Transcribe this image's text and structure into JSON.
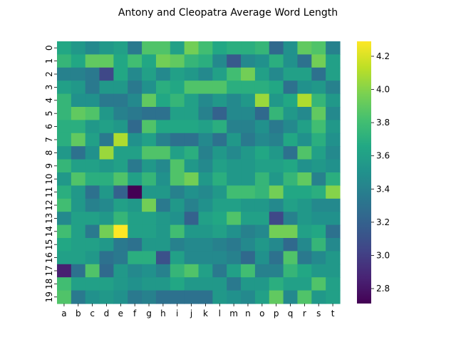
{
  "chart_data": {
    "type": "heatmap",
    "title": "Antony and Cleopatra Average Word Length",
    "xlabel": "",
    "ylabel": "",
    "x_categories": [
      "a",
      "b",
      "c",
      "d",
      "e",
      "f",
      "g",
      "h",
      "i",
      "j",
      "k",
      "l",
      "m",
      "n",
      "o",
      "p",
      "q",
      "r",
      "s",
      "t"
    ],
    "y_categories": [
      "0",
      "1",
      "2",
      "3",
      "4",
      "5",
      "6",
      "7",
      "8",
      "9",
      "10",
      "11",
      "12",
      "13",
      "14",
      "15",
      "16",
      "17",
      "18",
      "19"
    ],
    "colormap": "viridis",
    "vmin": 2.71,
    "vmax": 4.29,
    "colorbar_ticks": [
      "2.8",
      "3.0",
      "3.2",
      "3.4",
      "3.6",
      "3.8",
      "4.0",
      "4.2"
    ],
    "colorbar_tick_values": [
      2.8,
      3.0,
      3.2,
      3.4,
      3.6,
      3.8,
      4.0,
      4.2
    ],
    "values": [
      [
        3.65,
        3.55,
        3.45,
        3.55,
        3.6,
        3.35,
        3.85,
        3.85,
        3.6,
        3.95,
        3.8,
        3.65,
        3.7,
        3.7,
        3.75,
        3.25,
        3.5,
        3.9,
        3.85,
        3.4
      ],
      [
        3.75,
        3.65,
        3.9,
        3.9,
        3.65,
        3.8,
        3.65,
        3.95,
        3.9,
        3.75,
        3.7,
        3.45,
        3.15,
        3.45,
        3.5,
        3.7,
        3.5,
        3.3,
        3.95,
        3.6
      ],
      [
        3.4,
        3.4,
        3.35,
        3.05,
        3.65,
        3.45,
        3.6,
        3.45,
        3.6,
        3.55,
        3.45,
        3.6,
        3.8,
        3.95,
        3.6,
        3.45,
        3.6,
        3.6,
        3.3,
        3.6
      ],
      [
        3.6,
        3.55,
        3.35,
        3.55,
        3.55,
        3.35,
        3.5,
        3.7,
        3.65,
        3.85,
        3.85,
        3.85,
        3.7,
        3.7,
        3.7,
        3.65,
        3.3,
        3.5,
        3.55,
        3.4
      ],
      [
        3.75,
        3.5,
        3.5,
        3.35,
        3.35,
        3.45,
        3.9,
        3.65,
        3.75,
        3.6,
        3.45,
        3.55,
        3.45,
        3.55,
        4.05,
        3.55,
        3.65,
        4.1,
        3.75,
        3.55
      ],
      [
        3.75,
        3.9,
        3.85,
        3.55,
        3.4,
        3.35,
        3.3,
        3.3,
        3.6,
        3.6,
        3.4,
        3.2,
        3.45,
        3.45,
        3.25,
        3.75,
        3.55,
        3.45,
        3.9,
        3.45
      ],
      [
        3.7,
        3.7,
        3.55,
        3.6,
        3.55,
        3.25,
        3.85,
        3.65,
        3.65,
        3.65,
        3.6,
        3.7,
        3.4,
        3.4,
        3.5,
        3.35,
        3.45,
        3.6,
        3.8,
        3.55
      ],
      [
        3.7,
        3.9,
        3.6,
        3.35,
        4.1,
        3.5,
        3.6,
        3.4,
        3.3,
        3.3,
        3.45,
        3.3,
        3.55,
        3.35,
        3.45,
        3.4,
        3.65,
        3.5,
        3.7,
        3.5
      ],
      [
        3.55,
        3.3,
        3.5,
        4.05,
        3.6,
        3.6,
        3.85,
        3.85,
        3.6,
        3.7,
        3.4,
        3.55,
        3.45,
        3.55,
        3.65,
        3.55,
        3.3,
        3.85,
        3.6,
        3.45
      ],
      [
        3.75,
        3.6,
        3.6,
        3.55,
        3.6,
        3.35,
        3.55,
        3.45,
        3.85,
        3.55,
        3.45,
        3.6,
        3.55,
        3.55,
        3.6,
        3.6,
        3.65,
        3.5,
        3.55,
        3.5
      ],
      [
        3.55,
        3.85,
        3.7,
        3.7,
        3.85,
        3.6,
        3.75,
        3.5,
        3.85,
        3.95,
        3.55,
        3.7,
        3.55,
        3.55,
        3.75,
        3.55,
        3.75,
        3.9,
        3.4,
        3.7
      ],
      [
        3.7,
        3.55,
        3.3,
        3.55,
        3.2,
        2.71,
        3.55,
        3.55,
        3.4,
        3.5,
        3.45,
        3.55,
        3.8,
        3.8,
        3.75,
        3.95,
        3.65,
        3.65,
        3.7,
        4.0
      ],
      [
        3.8,
        3.55,
        3.4,
        3.45,
        3.6,
        3.55,
        3.95,
        3.35,
        3.55,
        3.4,
        3.5,
        3.6,
        3.6,
        3.55,
        3.55,
        3.45,
        3.6,
        3.55,
        3.45,
        3.45
      ],
      [
        3.45,
        3.6,
        3.6,
        3.55,
        3.75,
        3.6,
        3.6,
        3.55,
        3.5,
        3.2,
        3.6,
        3.65,
        3.85,
        3.6,
        3.6,
        3.05,
        3.4,
        3.55,
        3.5,
        3.5
      ],
      [
        3.8,
        3.6,
        3.35,
        3.95,
        4.29,
        3.6,
        3.6,
        3.55,
        3.8,
        3.55,
        3.55,
        3.6,
        3.5,
        3.4,
        3.45,
        3.95,
        3.95,
        3.6,
        3.65,
        3.3
      ],
      [
        3.65,
        3.6,
        3.6,
        3.55,
        3.35,
        3.3,
        3.55,
        3.55,
        3.4,
        3.45,
        3.45,
        3.4,
        3.35,
        3.45,
        3.55,
        3.45,
        3.25,
        3.45,
        3.75,
        3.45
      ],
      [
        3.6,
        3.6,
        3.55,
        3.3,
        3.35,
        3.7,
        3.7,
        3.1,
        3.6,
        3.45,
        3.45,
        3.45,
        3.4,
        3.25,
        3.5,
        3.3,
        3.85,
        3.35,
        3.45,
        3.55
      ],
      [
        2.85,
        3.3,
        3.85,
        3.25,
        3.55,
        3.45,
        3.5,
        3.4,
        3.75,
        3.85,
        3.6,
        3.35,
        3.6,
        3.8,
        3.4,
        3.4,
        3.75,
        3.65,
        3.55,
        3.55
      ],
      [
        3.8,
        3.6,
        3.6,
        3.6,
        3.55,
        3.5,
        3.55,
        3.55,
        3.65,
        3.55,
        3.55,
        3.55,
        3.35,
        3.55,
        3.55,
        3.7,
        3.6,
        3.6,
        3.85,
        3.6
      ],
      [
        3.85,
        3.35,
        3.5,
        3.55,
        3.5,
        3.35,
        3.4,
        3.3,
        3.3,
        3.3,
        3.3,
        3.55,
        3.5,
        3.45,
        3.6,
        3.9,
        3.45,
        3.85,
        3.55,
        3.6
      ]
    ]
  }
}
